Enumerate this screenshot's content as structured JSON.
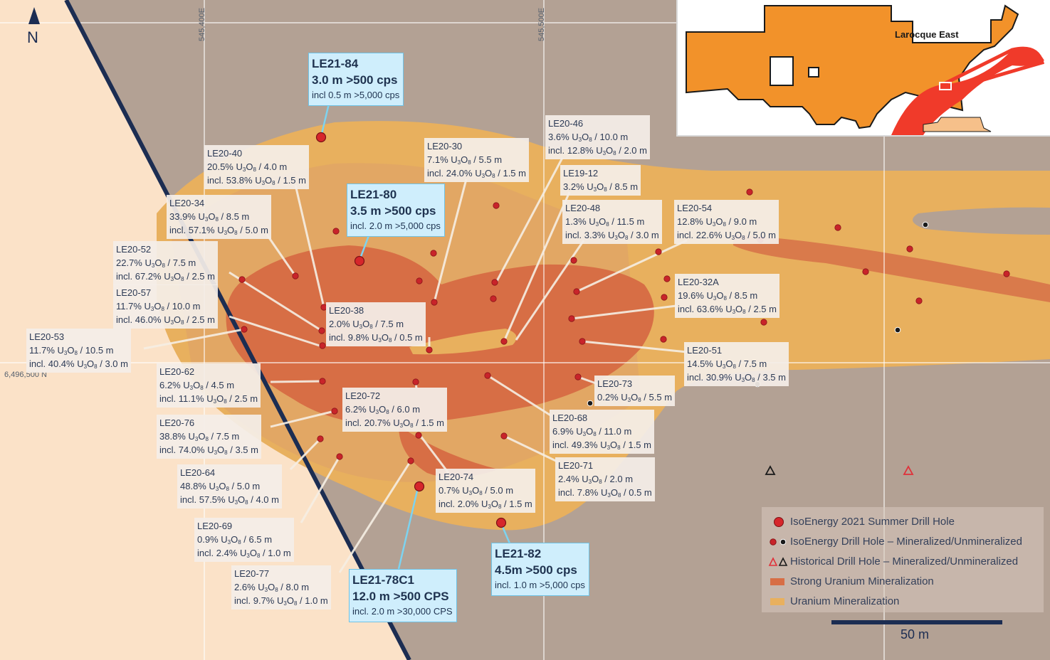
{
  "north_label": "N",
  "coords": {
    "easting_1": "545,400E",
    "easting_2": "545,500E",
    "northing": "6,496,500 N"
  },
  "inset_label": "Larocque East",
  "scale_label": "50 m",
  "colors": {
    "background_land": "#b3a194",
    "left_zone": "#fbe2c8",
    "uranium_mineralization": "#e8b05e",
    "strong_mineralization": "#d76e45",
    "drill_hole": "#c8242a",
    "historical_unmineralized": "#1a1a1a",
    "boundary_line": "#1c2d52",
    "inset_property": "#f2922a",
    "inset_trend": "#f03a2a",
    "highlight_box": "#cfeefc"
  },
  "legend": [
    {
      "label": "IsoEnergy 2021 Summer Drill Hole",
      "icon": "large-red-dot-icon"
    },
    {
      "label": "IsoEnergy Drill Hole – Mineralized/Unmineralized",
      "icon": "red-black-dot-icon"
    },
    {
      "label": "Historical Drill Hole – Mineralized/Unmineralized",
      "icon": "red-black-triangle-icon"
    },
    {
      "label": "Strong Uranium Mineralization",
      "icon": "dark-orange-swatch-icon"
    },
    {
      "label": "Uranium  Mineralization",
      "icon": "light-orange-swatch-icon"
    }
  ],
  "highlight_holes": [
    {
      "id": "LE21-84",
      "result": "3.0 m >500 cps",
      "incl": "incl 0.5 m >5,000 cps"
    },
    {
      "id": "LE21-80",
      "result": "3.5 m >500 cps",
      "incl": "incl. 2.0 m >5,000 cps"
    },
    {
      "id": "LE21-78C1",
      "result": "12.0 m >500 CPS",
      "incl": "incl. 2.0 m >30,000 CPS"
    },
    {
      "id": "LE21-82",
      "result": "4.5m >500 cps",
      "incl": "incl. 1.0 m >5,000 cps"
    }
  ],
  "holes": [
    {
      "id": "LE20-40",
      "lines": [
        [
          "20.5% U",
          "3",
          "O",
          "8",
          " / 4.0 m"
        ],
        [
          "incl. 53.8% U",
          "3",
          "O",
          "8",
          " / 1.5 m"
        ]
      ]
    },
    {
      "id": "LE20-34",
      "lines": [
        [
          "33.9% U",
          "3",
          "O",
          "8",
          " / 8.5 m"
        ],
        [
          "incl. 57.1% U",
          "3",
          "O",
          "8",
          " / 5.0 m"
        ]
      ]
    },
    {
      "id": "LE20-52",
      "lines": [
        [
          "22.7% U",
          "3",
          "O",
          "8",
          " / 7.5 m"
        ],
        [
          "incl. 67.2% U",
          "3",
          "O",
          "8",
          " / 2.5 m"
        ]
      ]
    },
    {
      "id": "LE20-57",
      "lines": [
        [
          "11.7% U",
          "3",
          "O",
          "8",
          " / 10.0 m"
        ],
        [
          "incl. 46.0% U",
          "3",
          "O",
          "8",
          " / 2.5 m"
        ]
      ]
    },
    {
      "id": "LE20-53",
      "lines": [
        [
          "11.7% U",
          "3",
          "O",
          "8",
          " / 10.5 m"
        ],
        [
          "incl. 40.4% U",
          "3",
          "O",
          "8",
          " / 3.0 m"
        ]
      ]
    },
    {
      "id": "LE20-62",
      "lines": [
        [
          "6.2% U",
          "3",
          "O",
          "8",
          " / 4.5 m"
        ],
        [
          "incl. 11.1% U",
          "3",
          "O",
          "8",
          " / 2.5 m"
        ]
      ]
    },
    {
      "id": "LE20-76",
      "lines": [
        [
          "38.8% U",
          "3",
          "O",
          "8",
          " / 7.5 m"
        ],
        [
          "incl. 74.0% U",
          "3",
          "O",
          "8",
          " / 3.5 m"
        ]
      ]
    },
    {
      "id": "LE20-64",
      "lines": [
        [
          "48.8% U",
          "3",
          "O",
          "8",
          " / 5.0 m"
        ],
        [
          "incl. 57.5% U",
          "3",
          "O",
          "8",
          " / 4.0 m"
        ]
      ]
    },
    {
      "id": "LE20-69",
      "lines": [
        [
          "0.9% U",
          "3",
          "O",
          "8",
          " / 6.5 m"
        ],
        [
          "incl. 2.4% U",
          "3",
          "O",
          "8",
          " / 1.0 m"
        ]
      ]
    },
    {
      "id": "LE20-77",
      "lines": [
        [
          "2.6% U",
          "3",
          "O",
          "8",
          " / 8.0 m"
        ],
        [
          "incl. 9.7% U",
          "3",
          "O",
          "8",
          " / 1.0 m"
        ]
      ]
    },
    {
      "id": "LE20-30",
      "lines": [
        [
          "7.1% U",
          "3",
          "O",
          "8",
          " / 5.5 m"
        ],
        [
          "incl. 24.0% U",
          "3",
          "O",
          "8",
          " / 1.5 m"
        ]
      ]
    },
    {
      "id": "LE20-38",
      "lines": [
        [
          "2.0% U",
          "3",
          "O",
          "8",
          " / 7.5 m"
        ],
        [
          "incl. 9.8% U",
          "3",
          "O",
          "8",
          " / 0.5 m"
        ]
      ]
    },
    {
      "id": "LE20-72",
      "lines": [
        [
          "6.2% U",
          "3",
          "O",
          "8",
          " / 6.0 m"
        ],
        [
          "incl. 20.7% U",
          "3",
          "O",
          "8",
          " / 1.5 m"
        ]
      ]
    },
    {
      "id": "LE20-74",
      "lines": [
        [
          "0.7% U",
          "3",
          "O",
          "8",
          " / 5.0 m"
        ],
        [
          "incl. 2.0% U",
          "3",
          "O",
          "8",
          " / 1.5 m"
        ]
      ]
    },
    {
      "id": "LE20-46",
      "lines": [
        [
          "3.6% U",
          "3",
          "O",
          "8",
          " / 10.0 m"
        ],
        [
          "incl. 12.8% U",
          "3",
          "O",
          "8",
          " / 2.0 m"
        ]
      ]
    },
    {
      "id": "LE19-12",
      "lines": [
        [
          "3.2% U",
          "3",
          "O",
          "8",
          " / 8.5 m"
        ]
      ]
    },
    {
      "id": "LE20-48",
      "lines": [
        [
          "1.3% U",
          "3",
          "O",
          "8",
          " / 11.5 m"
        ],
        [
          "incl. 3.3% U",
          "3",
          "O",
          "8",
          " / 3.0 m"
        ]
      ]
    },
    {
      "id": "LE20-54",
      "lines": [
        [
          "12.8% U",
          "3",
          "O",
          "8",
          " / 9.0 m"
        ],
        [
          "incl. 22.6% U",
          "3",
          "O",
          "8",
          " / 5.0 m"
        ]
      ]
    },
    {
      "id": "LE20-32A",
      "lines": [
        [
          "19.6% U",
          "3",
          "O",
          "8",
          " / 8.5 m"
        ],
        [
          "incl. 63.6% U",
          "3",
          "O",
          "8",
          " / 2.5 m"
        ]
      ]
    },
    {
      "id": "LE20-51",
      "lines": [
        [
          "14.5% U",
          "3",
          "O",
          "8",
          " / 7.5 m"
        ],
        [
          "incl. 30.9% U",
          "3",
          "O",
          "8",
          " / 3.5 m"
        ]
      ]
    },
    {
      "id": "LE20-73",
      "lines": [
        [
          "0.2% U",
          "3",
          "O",
          "8",
          " / 5.5 m"
        ]
      ]
    },
    {
      "id": "LE20-68",
      "lines": [
        [
          "6.9% U",
          "3",
          "O",
          "8",
          " / 11.0 m"
        ],
        [
          "incl. 49.3% U",
          "3",
          "O",
          "8",
          " / 1.5 m"
        ]
      ]
    },
    {
      "id": "LE20-71",
      "lines": [
        [
          "2.4% U",
          "3",
          "O",
          "8",
          " / 2.0 m"
        ],
        [
          "incl. 7.8% U",
          "3",
          "O",
          "8",
          " / 0.5 m"
        ]
      ]
    }
  ]
}
